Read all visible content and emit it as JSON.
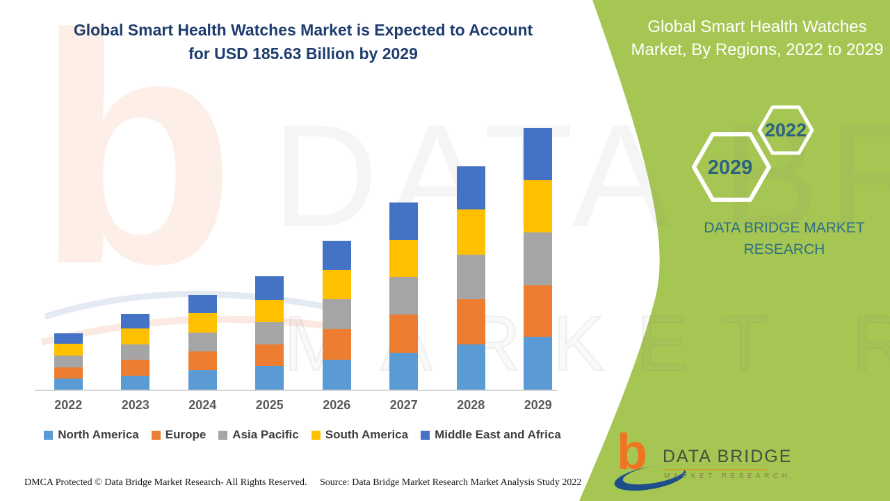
{
  "header": {
    "chart_title_line1": "Global Smart Health Watches Market is Expected to Account",
    "chart_title_line2": "for USD 185.63 Billion by 2029",
    "panel_title_line1": "Global Smart Health Watches",
    "panel_title_line2": "Market, By Regions, 2022 to 2029"
  },
  "panel": {
    "hex_year_small": "2022",
    "hex_year_large": "2029",
    "brand_line1": "DATA BRIDGE MARKET",
    "brand_line2": "RESEARCH"
  },
  "watermarks": {
    "letter": "b",
    "line1": "DATA BRIDGE",
    "line2": "MARKET RESEARCH"
  },
  "footer": {
    "dmca": "DMCA Protected © Data Bridge Market Research- All Rights Reserved.",
    "source": "Source: Data Bridge Market Research Market Analysis Study 2022"
  },
  "logo": {
    "glyph": "b",
    "name": "DATA BRIDGE",
    "tagline": "MARKET RESEARCH"
  },
  "colors": {
    "panel_green": "#a6c653",
    "title_blue": "#1e3d6e",
    "hex_text": "#2c647e",
    "brand_teal": "#2c6e84",
    "axis_label_gray": "#595959",
    "legend_text_gray": "#3f3f3f"
  },
  "chart_data": {
    "type": "bar",
    "stacked": true,
    "title": "Global Smart Health Watches Market, By Regions, 2022 to 2029",
    "unit": "USD Billion",
    "xlabel": "",
    "ylabel": "",
    "grid": false,
    "y_axis_shown": false,
    "legend_position": "bottom",
    "ylim": [
      0,
      190
    ],
    "categories": [
      "2022",
      "2023",
      "2024",
      "2025",
      "2026",
      "2027",
      "2028",
      "2029"
    ],
    "series": [
      {
        "name": "North America",
        "color": "#5B9BD5",
        "values": [
          7.9,
          9.9,
          13.8,
          16.8,
          21.2,
          26.2,
          32.1,
          37.5
        ]
      },
      {
        "name": "Europe",
        "color": "#ED7D31",
        "values": [
          7.9,
          11.4,
          13.3,
          15.3,
          21.7,
          27.2,
          32.1,
          36.5
        ]
      },
      {
        "name": "Asia Pacific",
        "color": "#A5A5A5",
        "values": [
          8.4,
          10.9,
          13.3,
          15.8,
          21.2,
          26.7,
          31.6,
          37.5
        ]
      },
      {
        "name": "South America",
        "color": "#FFC000",
        "values": [
          8.4,
          11.4,
          13.8,
          15.8,
          20.7,
          26.2,
          32.1,
          37.0
        ]
      },
      {
        "name": "Middle East and Africa",
        "color": "#4472C4",
        "values": [
          7.4,
          10.4,
          12.8,
          16.8,
          20.7,
          26.7,
          30.6,
          37.13
        ]
      }
    ],
    "totals_estimated": [
      40.0,
      54.0,
      67.0,
      80.5,
      105.5,
      133.0,
      158.5,
      185.63
    ],
    "highlight": {
      "year": "2029",
      "total": "USD 185.63 Billion"
    },
    "note": "Only the 2029 total (USD 185.63 billion) is printed on the graphic; per-region values are estimated from stacked bar segment heights."
  }
}
